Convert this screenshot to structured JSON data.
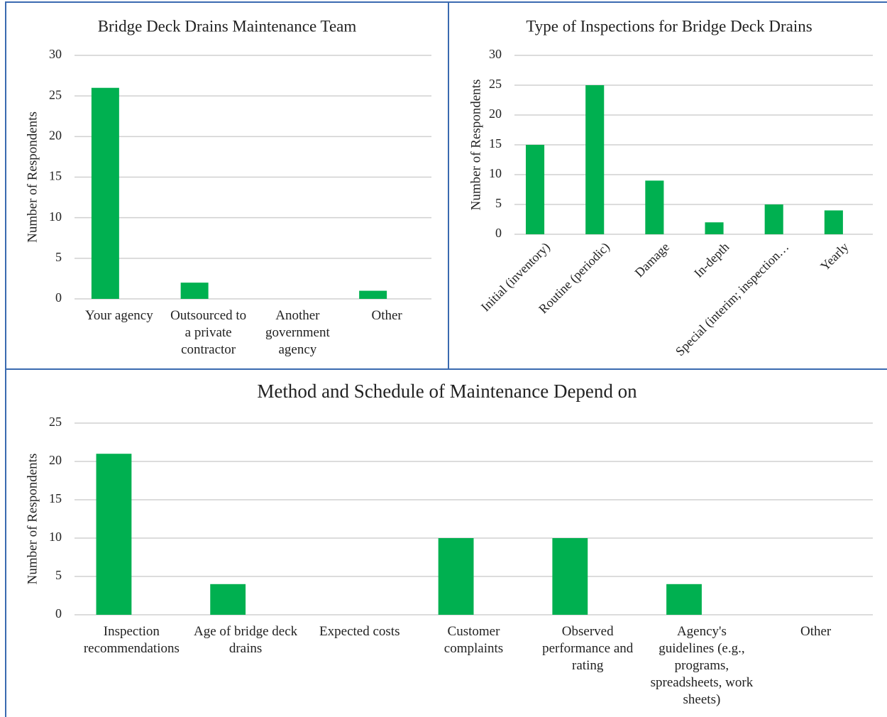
{
  "chart_data": [
    {
      "type": "bar",
      "title": "Bridge Deck Drains Maintenance Team",
      "y_label": "Number of Respondents",
      "categories": [
        "Your agency",
        "Outsourced to a private contractor",
        "Another government agency",
        "Other"
      ],
      "values": [
        26,
        2,
        0,
        1
      ],
      "color": "#00b050",
      "ylim": [
        0,
        30
      ],
      "yticks": [
        0,
        5,
        10,
        15,
        20,
        25,
        30
      ],
      "grid": true
    },
    {
      "type": "bar",
      "title": "Type of Inspections for Bridge Deck Drains",
      "y_label": "Number of Respondents",
      "categories": [
        "Initial (inventory)",
        "Routine (periodic)",
        "Damage",
        "In-depth",
        "Special (interim; inspection…",
        "Yearly"
      ],
      "values": [
        15,
        25,
        9,
        2,
        5,
        4
      ],
      "color": "#00b050",
      "ylim": [
        0,
        30
      ],
      "yticks": [
        0,
        5,
        10,
        15,
        20,
        25,
        30
      ],
      "grid": true
    },
    {
      "type": "bar",
      "title": "Method and Schedule of Maintenance Depend on",
      "y_label": "Number of Respondents",
      "categories": [
        "Inspection recommendations",
        "Age of bridge deck drains",
        "Expected costs",
        "Customer complaints",
        "Observed performance and rating",
        "Agency's guidelines (e.g., programs, spreadsheets, work sheets)",
        "Other"
      ],
      "values": [
        21,
        4,
        0,
        10,
        10,
        4,
        0
      ],
      "color": "#00b050",
      "ylim": [
        0,
        25
      ],
      "yticks": [
        0,
        5,
        10,
        15,
        20,
        25
      ],
      "grid": true
    }
  ]
}
